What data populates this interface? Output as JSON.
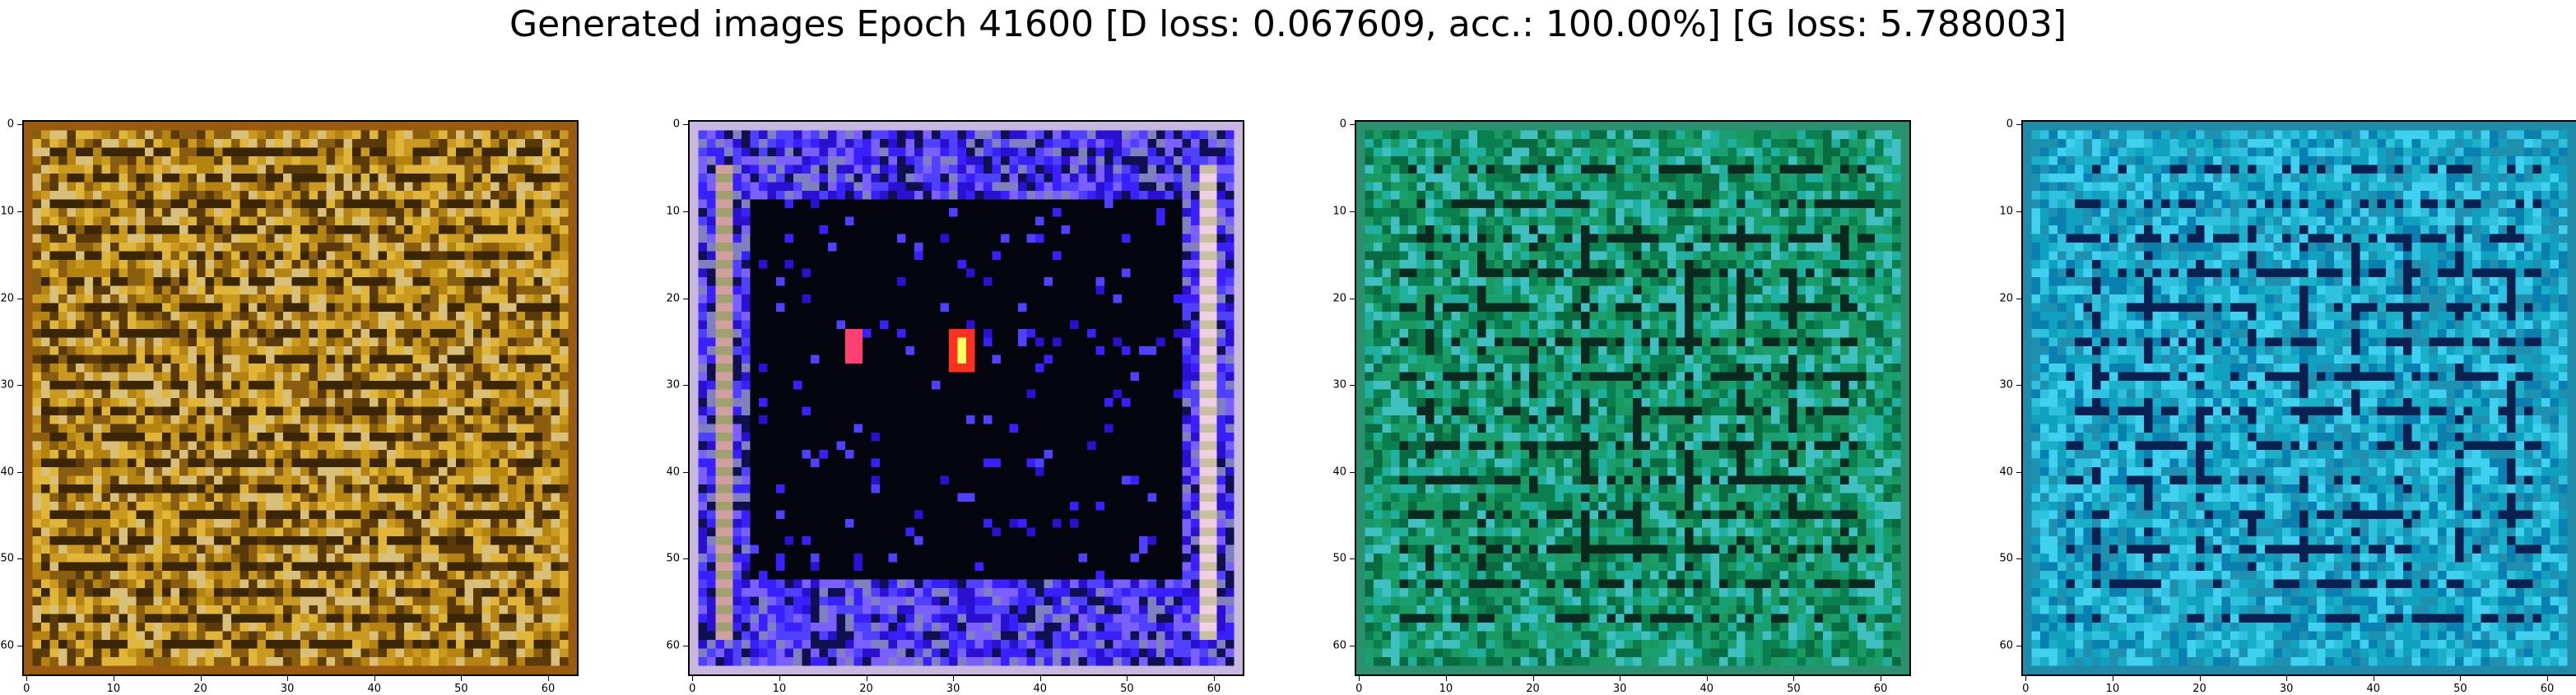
{
  "suptitle": "Generated images Epoch 41600 [D loss: 0.067609, acc.: 100.00%] [G loss: 5.788003]",
  "image_size": 64,
  "ticks": [
    "0",
    "10",
    "20",
    "30",
    "40",
    "50",
    "60"
  ],
  "tick_values": [
    0,
    10,
    20,
    30,
    40,
    50,
    60
  ],
  "panels": [
    {
      "name": "generated-image-1",
      "depicts": "golden-brown texture with horizontal dark streaks",
      "palette": [
        "#c99a1f",
        "#b5830f",
        "#e0b63a",
        "#8a5e10",
        "#d8c07a",
        "#5a3a08"
      ],
      "stripe_color": "#3a2505",
      "border_color": "#9a5a10"
    },
    {
      "name": "generated-image-2",
      "depicts": "blue-violet frame with dark center and two red-pink blobs",
      "palette": [
        "#3a20ff",
        "#2a10d0",
        "#5040ff",
        "#7a60ff",
        "#101050",
        "#8080c0"
      ],
      "center_color": "#050510",
      "blob_colors": [
        "#ff4070",
        "#ff3020"
      ],
      "border_color": "#c8b8e0"
    },
    {
      "name": "generated-image-3",
      "depicts": "green and teal grid-like texture",
      "palette": [
        "#1a9a60",
        "#0a8050",
        "#20b0a0",
        "#40c0c0",
        "#0a6a40",
        "#1aa070"
      ],
      "line_color": "#0a2a20",
      "border_color": "#2a9070"
    },
    {
      "name": "generated-image-4",
      "depicts": "cyan-blue grid-like texture",
      "palette": [
        "#1ab0c8",
        "#10a0c0",
        "#30c0e0",
        "#0a80b0",
        "#40d0f0",
        "#2090b0"
      ],
      "line_color": "#0a2050",
      "border_color": "#208aa8"
    }
  ]
}
